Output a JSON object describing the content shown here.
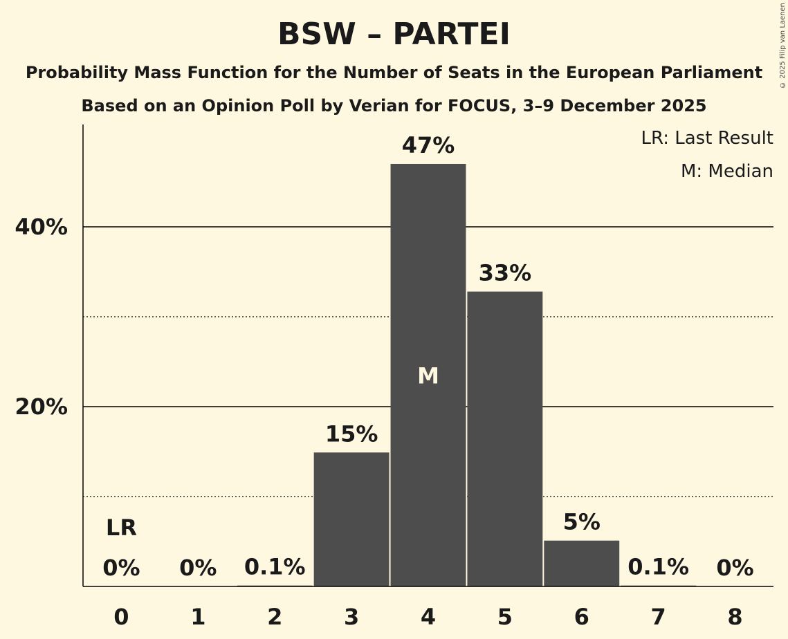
{
  "chart_data": {
    "type": "bar",
    "title": "BSW – PARTEI",
    "subtitle": "Probability Mass Function for the Number of Seats in the European Parliament",
    "subtitle2": "Based on an Opinion Poll by Verian for FOCUS, 3–9 December 2025",
    "copyright": "© 2025 Filip van Laenen",
    "categories": [
      "0",
      "1",
      "2",
      "3",
      "4",
      "5",
      "6",
      "7",
      "8"
    ],
    "values": [
      0,
      0,
      0.1,
      14.9,
      47,
      32.8,
      5.1,
      0.1,
      0
    ],
    "value_labels": [
      "0%",
      "0%",
      "0.1%",
      "15%",
      "47%",
      "33%",
      "5%",
      "0.1%",
      "0%"
    ],
    "ylim": [
      0,
      50
    ],
    "yticks": [
      {
        "value": 20,
        "label": "20%"
      },
      {
        "value": 40,
        "label": "40%"
      }
    ],
    "minor_gridlines": [
      10,
      30
    ],
    "median_index": 4,
    "median_label": "M",
    "last_result_index": 0,
    "last_result_label": "LR",
    "legend": {
      "lr": "LR: Last Result",
      "m": "M: Median"
    },
    "bar_color": "#4d4d4d",
    "background_color": "#fff8e1"
  }
}
